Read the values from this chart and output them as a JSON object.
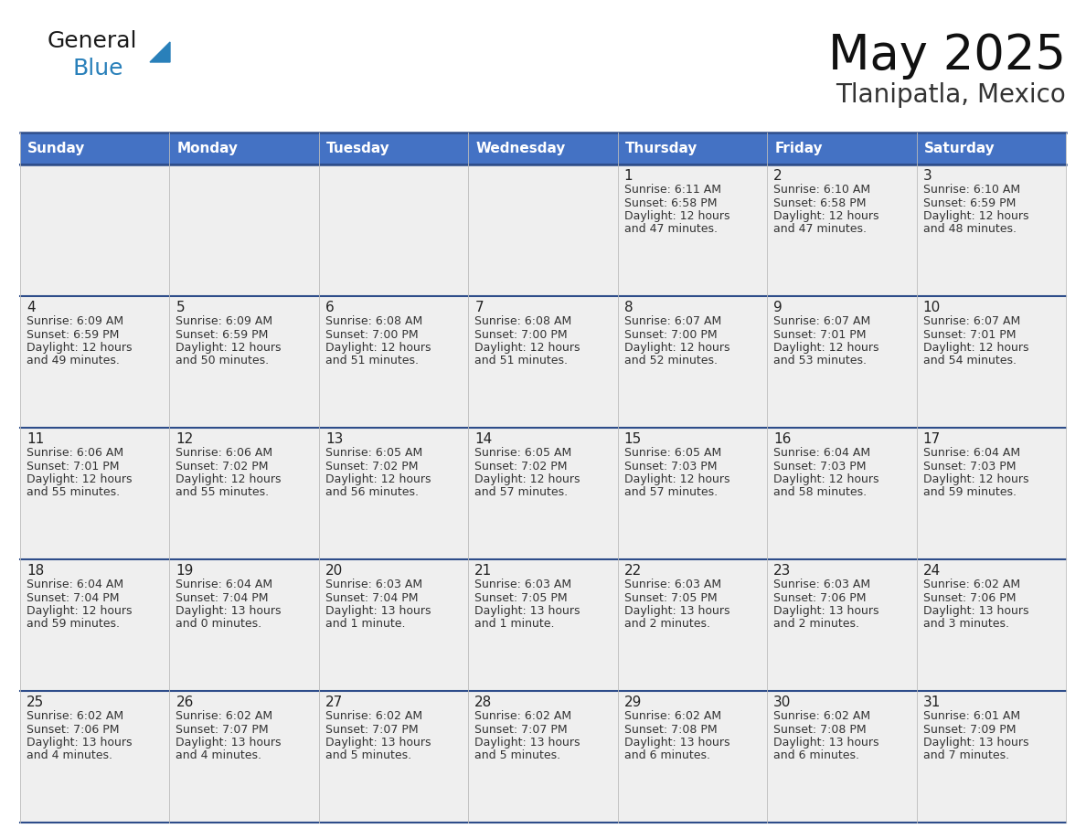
{
  "title": "May 2025",
  "location": "Tlanipatla, Mexico",
  "header_bg": "#4472C4",
  "header_text_color": "#FFFFFF",
  "cell_bg": "#EFEFEF",
  "cell_bg_white": "#FFFFFF",
  "row_divider_color": "#2E4D8A",
  "col_divider_color": "#CCCCCC",
  "day_number_color": "#222222",
  "cell_text_color": "#333333",
  "days_of_week": [
    "Sunday",
    "Monday",
    "Tuesday",
    "Wednesday",
    "Thursday",
    "Friday",
    "Saturday"
  ],
  "calendar_data": [
    [
      {
        "day": "",
        "sunrise": "",
        "sunset": "",
        "daylight": ""
      },
      {
        "day": "",
        "sunrise": "",
        "sunset": "",
        "daylight": ""
      },
      {
        "day": "",
        "sunrise": "",
        "sunset": "",
        "daylight": ""
      },
      {
        "day": "",
        "sunrise": "",
        "sunset": "",
        "daylight": ""
      },
      {
        "day": "1",
        "sunrise": "6:11 AM",
        "sunset": "6:58 PM",
        "daylight": "12 hours and 47 minutes."
      },
      {
        "day": "2",
        "sunrise": "6:10 AM",
        "sunset": "6:58 PM",
        "daylight": "12 hours and 47 minutes."
      },
      {
        "day": "3",
        "sunrise": "6:10 AM",
        "sunset": "6:59 PM",
        "daylight": "12 hours and 48 minutes."
      }
    ],
    [
      {
        "day": "4",
        "sunrise": "6:09 AM",
        "sunset": "6:59 PM",
        "daylight": "12 hours and 49 minutes."
      },
      {
        "day": "5",
        "sunrise": "6:09 AM",
        "sunset": "6:59 PM",
        "daylight": "12 hours and 50 minutes."
      },
      {
        "day": "6",
        "sunrise": "6:08 AM",
        "sunset": "7:00 PM",
        "daylight": "12 hours and 51 minutes."
      },
      {
        "day": "7",
        "sunrise": "6:08 AM",
        "sunset": "7:00 PM",
        "daylight": "12 hours and 51 minutes."
      },
      {
        "day": "8",
        "sunrise": "6:07 AM",
        "sunset": "7:00 PM",
        "daylight": "12 hours and 52 minutes."
      },
      {
        "day": "9",
        "sunrise": "6:07 AM",
        "sunset": "7:01 PM",
        "daylight": "12 hours and 53 minutes."
      },
      {
        "day": "10",
        "sunrise": "6:07 AM",
        "sunset": "7:01 PM",
        "daylight": "12 hours and 54 minutes."
      }
    ],
    [
      {
        "day": "11",
        "sunrise": "6:06 AM",
        "sunset": "7:01 PM",
        "daylight": "12 hours and 55 minutes."
      },
      {
        "day": "12",
        "sunrise": "6:06 AM",
        "sunset": "7:02 PM",
        "daylight": "12 hours and 55 minutes."
      },
      {
        "day": "13",
        "sunrise": "6:05 AM",
        "sunset": "7:02 PM",
        "daylight": "12 hours and 56 minutes."
      },
      {
        "day": "14",
        "sunrise": "6:05 AM",
        "sunset": "7:02 PM",
        "daylight": "12 hours and 57 minutes."
      },
      {
        "day": "15",
        "sunrise": "6:05 AM",
        "sunset": "7:03 PM",
        "daylight": "12 hours and 57 minutes."
      },
      {
        "day": "16",
        "sunrise": "6:04 AM",
        "sunset": "7:03 PM",
        "daylight": "12 hours and 58 minutes."
      },
      {
        "day": "17",
        "sunrise": "6:04 AM",
        "sunset": "7:03 PM",
        "daylight": "12 hours and 59 minutes."
      }
    ],
    [
      {
        "day": "18",
        "sunrise": "6:04 AM",
        "sunset": "7:04 PM",
        "daylight": "12 hours and 59 minutes."
      },
      {
        "day": "19",
        "sunrise": "6:04 AM",
        "sunset": "7:04 PM",
        "daylight": "13 hours and 0 minutes."
      },
      {
        "day": "20",
        "sunrise": "6:03 AM",
        "sunset": "7:04 PM",
        "daylight": "13 hours and 1 minute."
      },
      {
        "day": "21",
        "sunrise": "6:03 AM",
        "sunset": "7:05 PM",
        "daylight": "13 hours and 1 minute."
      },
      {
        "day": "22",
        "sunrise": "6:03 AM",
        "sunset": "7:05 PM",
        "daylight": "13 hours and 2 minutes."
      },
      {
        "day": "23",
        "sunrise": "6:03 AM",
        "sunset": "7:06 PM",
        "daylight": "13 hours and 2 minutes."
      },
      {
        "day": "24",
        "sunrise": "6:02 AM",
        "sunset": "7:06 PM",
        "daylight": "13 hours and 3 minutes."
      }
    ],
    [
      {
        "day": "25",
        "sunrise": "6:02 AM",
        "sunset": "7:06 PM",
        "daylight": "13 hours and 4 minutes."
      },
      {
        "day": "26",
        "sunrise": "6:02 AM",
        "sunset": "7:07 PM",
        "daylight": "13 hours and 4 minutes."
      },
      {
        "day": "27",
        "sunrise": "6:02 AM",
        "sunset": "7:07 PM",
        "daylight": "13 hours and 5 minutes."
      },
      {
        "day": "28",
        "sunrise": "6:02 AM",
        "sunset": "7:07 PM",
        "daylight": "13 hours and 5 minutes."
      },
      {
        "day": "29",
        "sunrise": "6:02 AM",
        "sunset": "7:08 PM",
        "daylight": "13 hours and 6 minutes."
      },
      {
        "day": "30",
        "sunrise": "6:02 AM",
        "sunset": "7:08 PM",
        "daylight": "13 hours and 6 minutes."
      },
      {
        "day": "31",
        "sunrise": "6:01 AM",
        "sunset": "7:09 PM",
        "daylight": "13 hours and 7 minutes."
      }
    ]
  ],
  "logo_text_general": "General",
  "logo_text_blue": "Blue",
  "logo_color_general": "#1A1A1A",
  "logo_color_blue": "#2980BA",
  "logo_triangle_color": "#2980BA",
  "fig_width": 11.88,
  "fig_height": 9.18,
  "dpi": 100
}
